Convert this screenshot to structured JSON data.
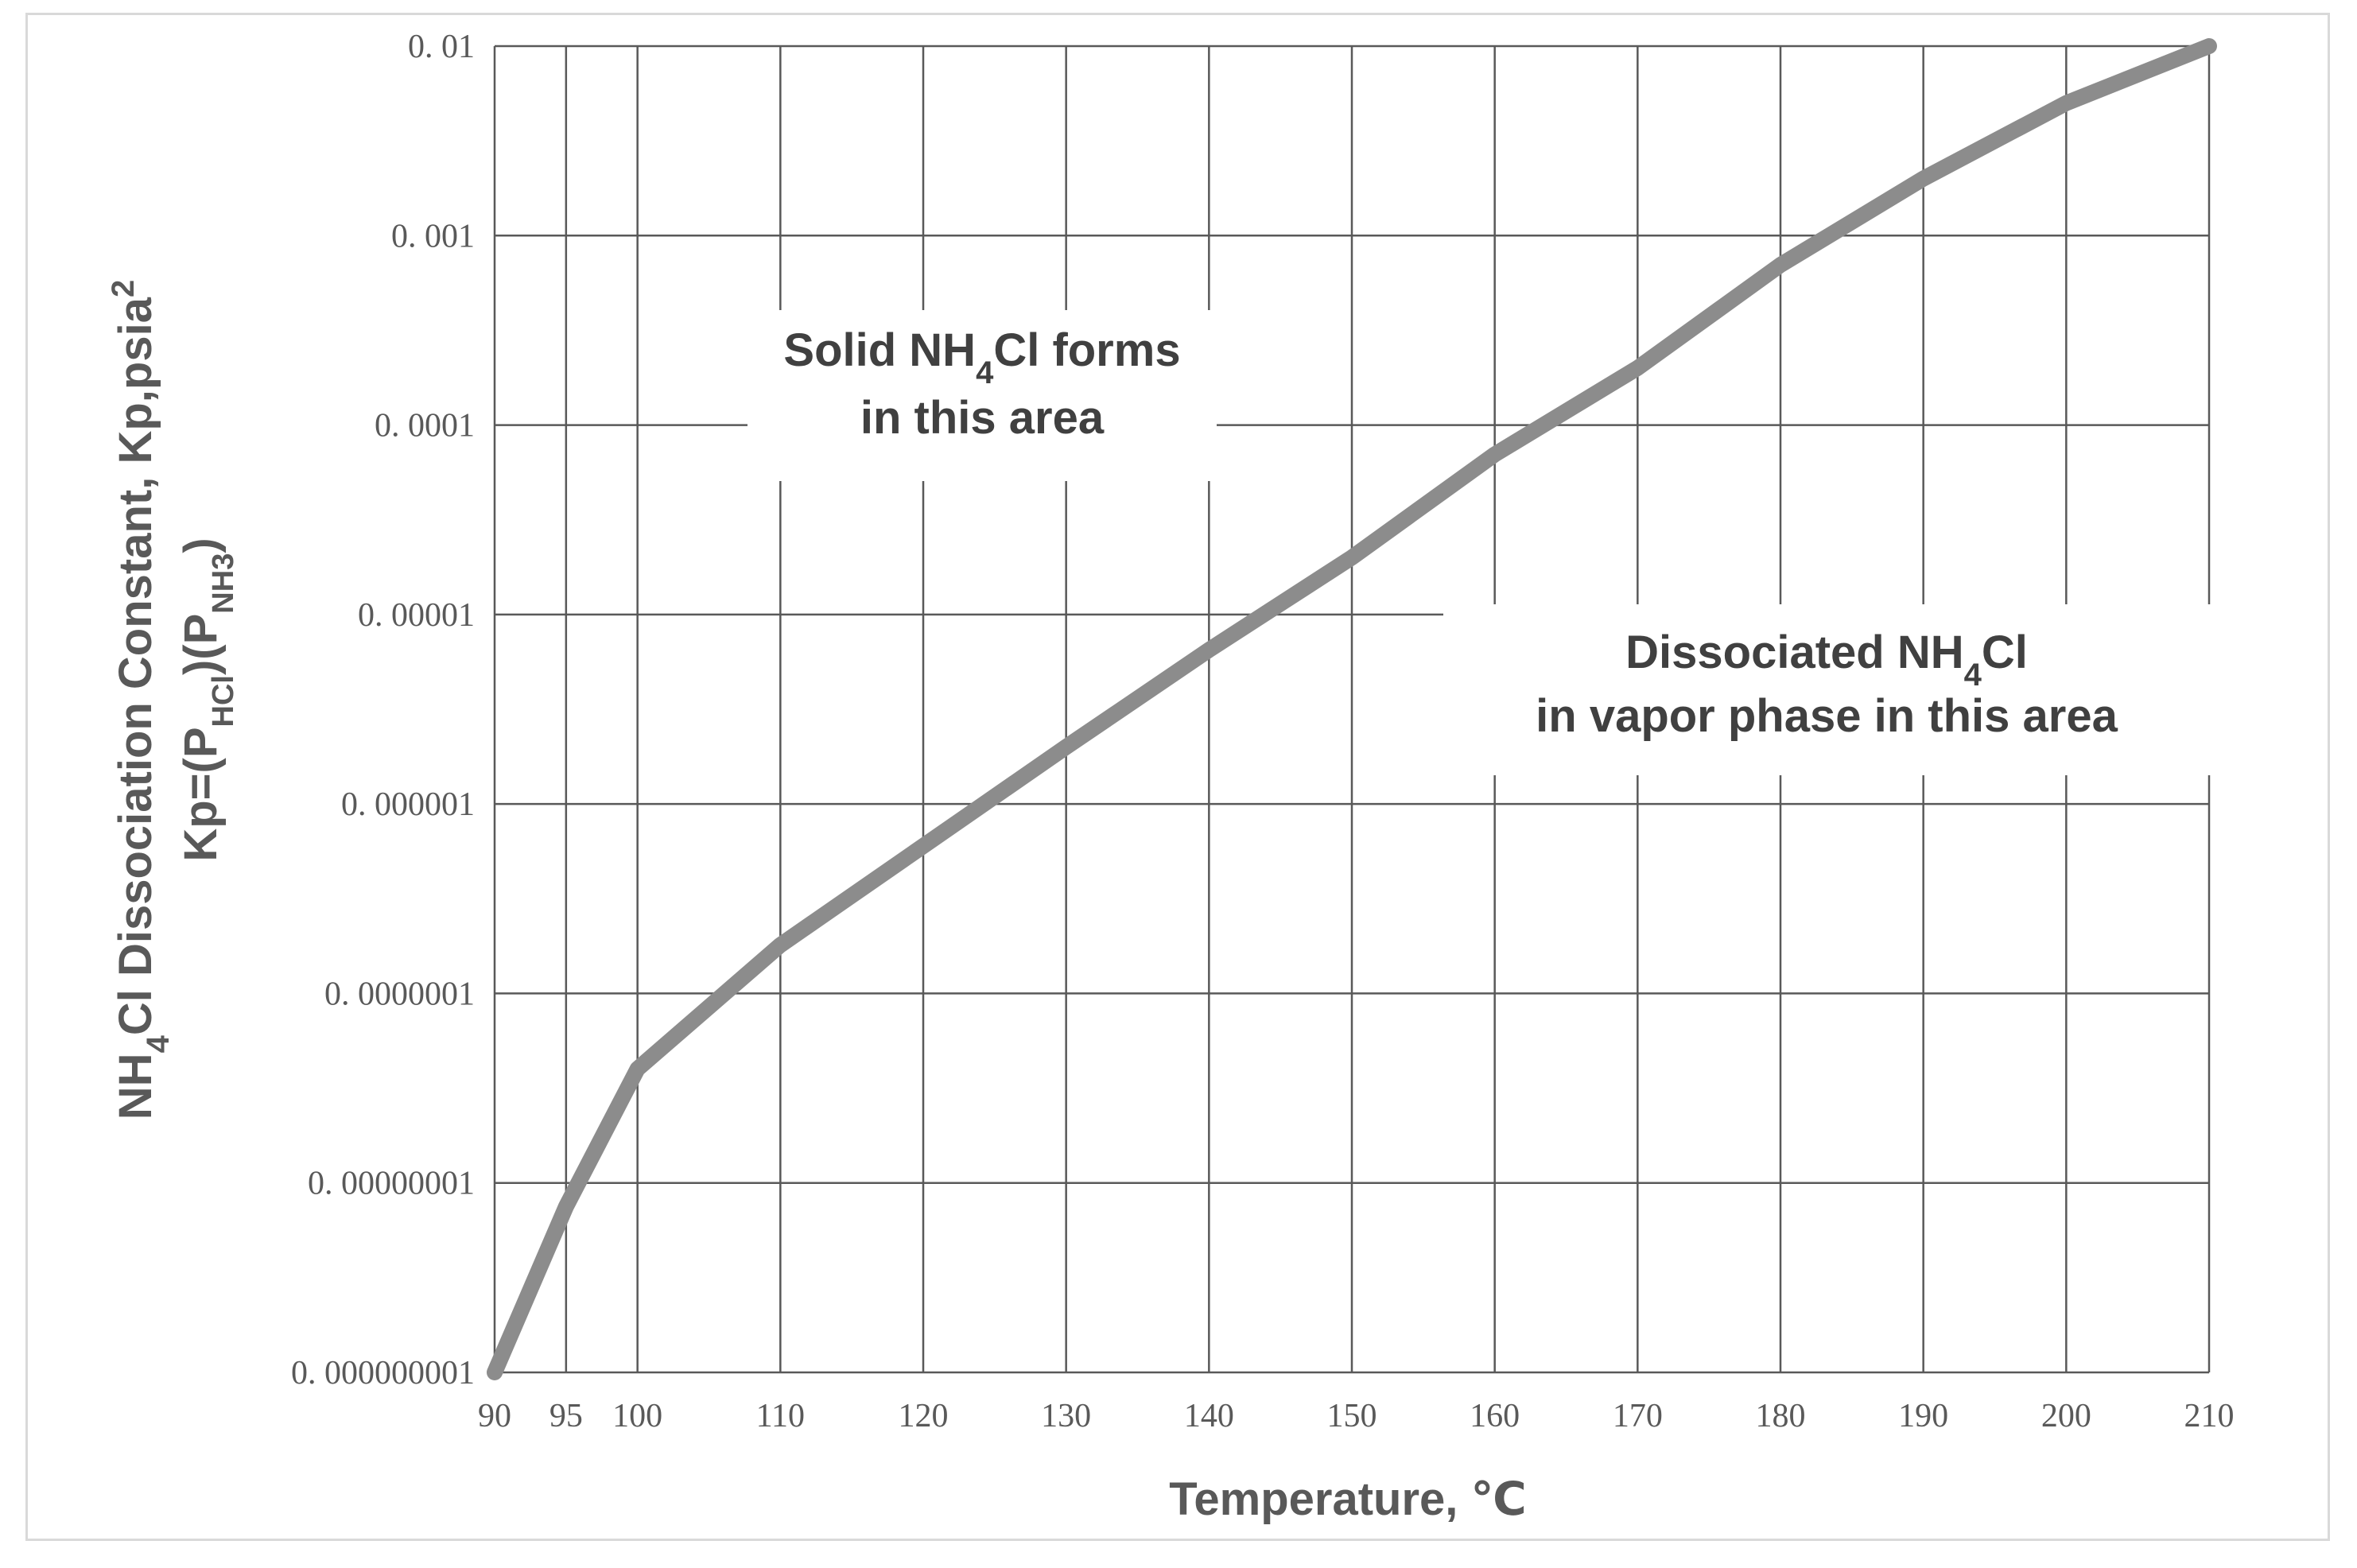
{
  "chart_data": {
    "type": "line",
    "title": "",
    "xlabel": "Temperature, ℃",
    "ylabel_line1": "NH4Cl Dissociation Constant, Kp,psia2",
    "ylabel_line2": "Kp=(PHCl)(PNH3)",
    "y_scale": "log",
    "xlim": [
      90,
      210
    ],
    "ylim": [
      1e-09,
      0.01
    ],
    "grid": true,
    "x_ticks": [
      90,
      95,
      100,
      110,
      120,
      130,
      140,
      150,
      160,
      170,
      180,
      190,
      200,
      210
    ],
    "x_tick_labels": [
      "90",
      "95",
      "100",
      "110",
      "120",
      "130",
      "140",
      "150",
      "160",
      "170",
      "180",
      "190",
      "200",
      "210"
    ],
    "y_ticks": [
      0.01,
      0.001,
      0.0001,
      1e-05,
      1e-06,
      1e-07,
      1e-08,
      1e-09
    ],
    "y_tick_labels": [
      "0. 01",
      "0. 001",
      "0. 0001",
      "0. 00001",
      "0. 000001",
      "0. 0000001",
      "0. 00000001",
      "0. 000000001"
    ],
    "series": [
      {
        "x": [
          90,
          95,
          100,
          110,
          120,
          130,
          140,
          150,
          160,
          170,
          180,
          190,
          200,
          210
        ],
        "y": [
          1e-09,
          7.5e-09,
          4e-08,
          1.8e-07,
          6e-07,
          2e-06,
          6.5e-06,
          2e-05,
          7e-05,
          0.0002,
          0.0007,
          0.002,
          0.005,
          0.01
        ],
        "color": "#8c8c8c"
      }
    ],
    "annotations": [
      {
        "region": "above curve",
        "line1": "Solid NH4Cl forms",
        "line2": "in this area"
      },
      {
        "region": "below curve",
        "line1": "Dissociated NH4Cl",
        "line2": "in vapor phase in this area"
      }
    ]
  },
  "colors": {
    "grid": "#595959",
    "curve": "#8c8c8c",
    "text": "#595959",
    "border": "#d9d9d9"
  }
}
